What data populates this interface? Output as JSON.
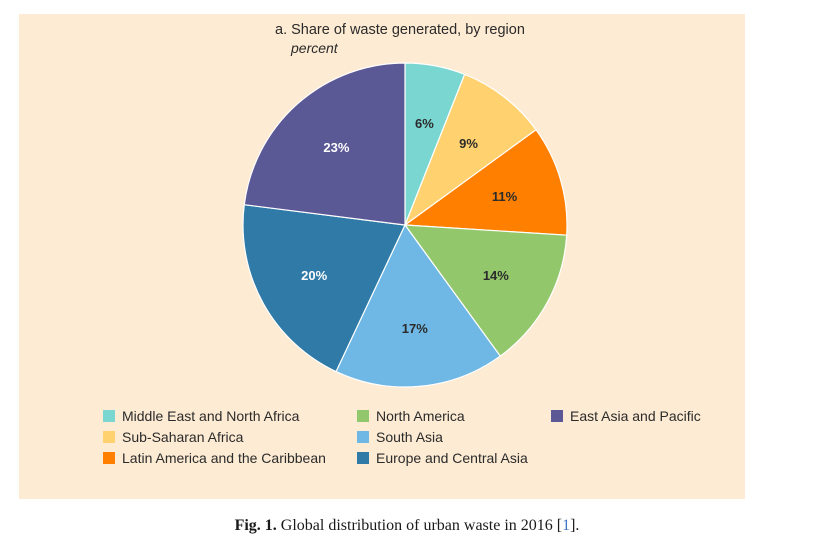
{
  "chart_data": {
    "type": "pie",
    "title": "a. Share of waste generated, by region",
    "subtitle": "percent",
    "slices": [
      {
        "label": "Middle East and North Africa",
        "value": 6,
        "display": "6%",
        "color": "#79d6d1",
        "text_color": "#2b2b2b"
      },
      {
        "label": "Sub-Saharan Africa",
        "value": 9,
        "display": "9%",
        "color": "#ffd16f",
        "text_color": "#2b2b2b"
      },
      {
        "label": "Latin America and the Caribbean",
        "value": 11,
        "display": "11%",
        "color": "#ff8000",
        "text_color": "#2b2b2b"
      },
      {
        "label": "North America",
        "value": 14,
        "display": "14%",
        "color": "#93c76c",
        "text_color": "#2b2b2b"
      },
      {
        "label": "South Asia",
        "value": 17,
        "display": "17%",
        "color": "#6fb8e6",
        "text_color": "#2b2b2b"
      },
      {
        "label": "Europe and Central Asia",
        "value": 20,
        "display": "20%",
        "color": "#2f7aa6",
        "text_color": "#ffffff"
      },
      {
        "label": "East Asia and Pacific",
        "value": 23,
        "display": "23%",
        "color": "#5b5896",
        "text_color": "#ffffff"
      }
    ],
    "legend": [
      [
        "Middle East and North Africa",
        "Sub-Saharan Africa",
        "Latin America and the Caribbean"
      ],
      [
        "North America",
        "South Asia",
        "Europe and Central Asia"
      ],
      [
        "East Asia and Pacific"
      ]
    ]
  },
  "caption": {
    "fig": "Fig. 1.",
    "text": " Global distribution of urban waste in 2016 [",
    "ref": "1",
    "end": "]."
  }
}
